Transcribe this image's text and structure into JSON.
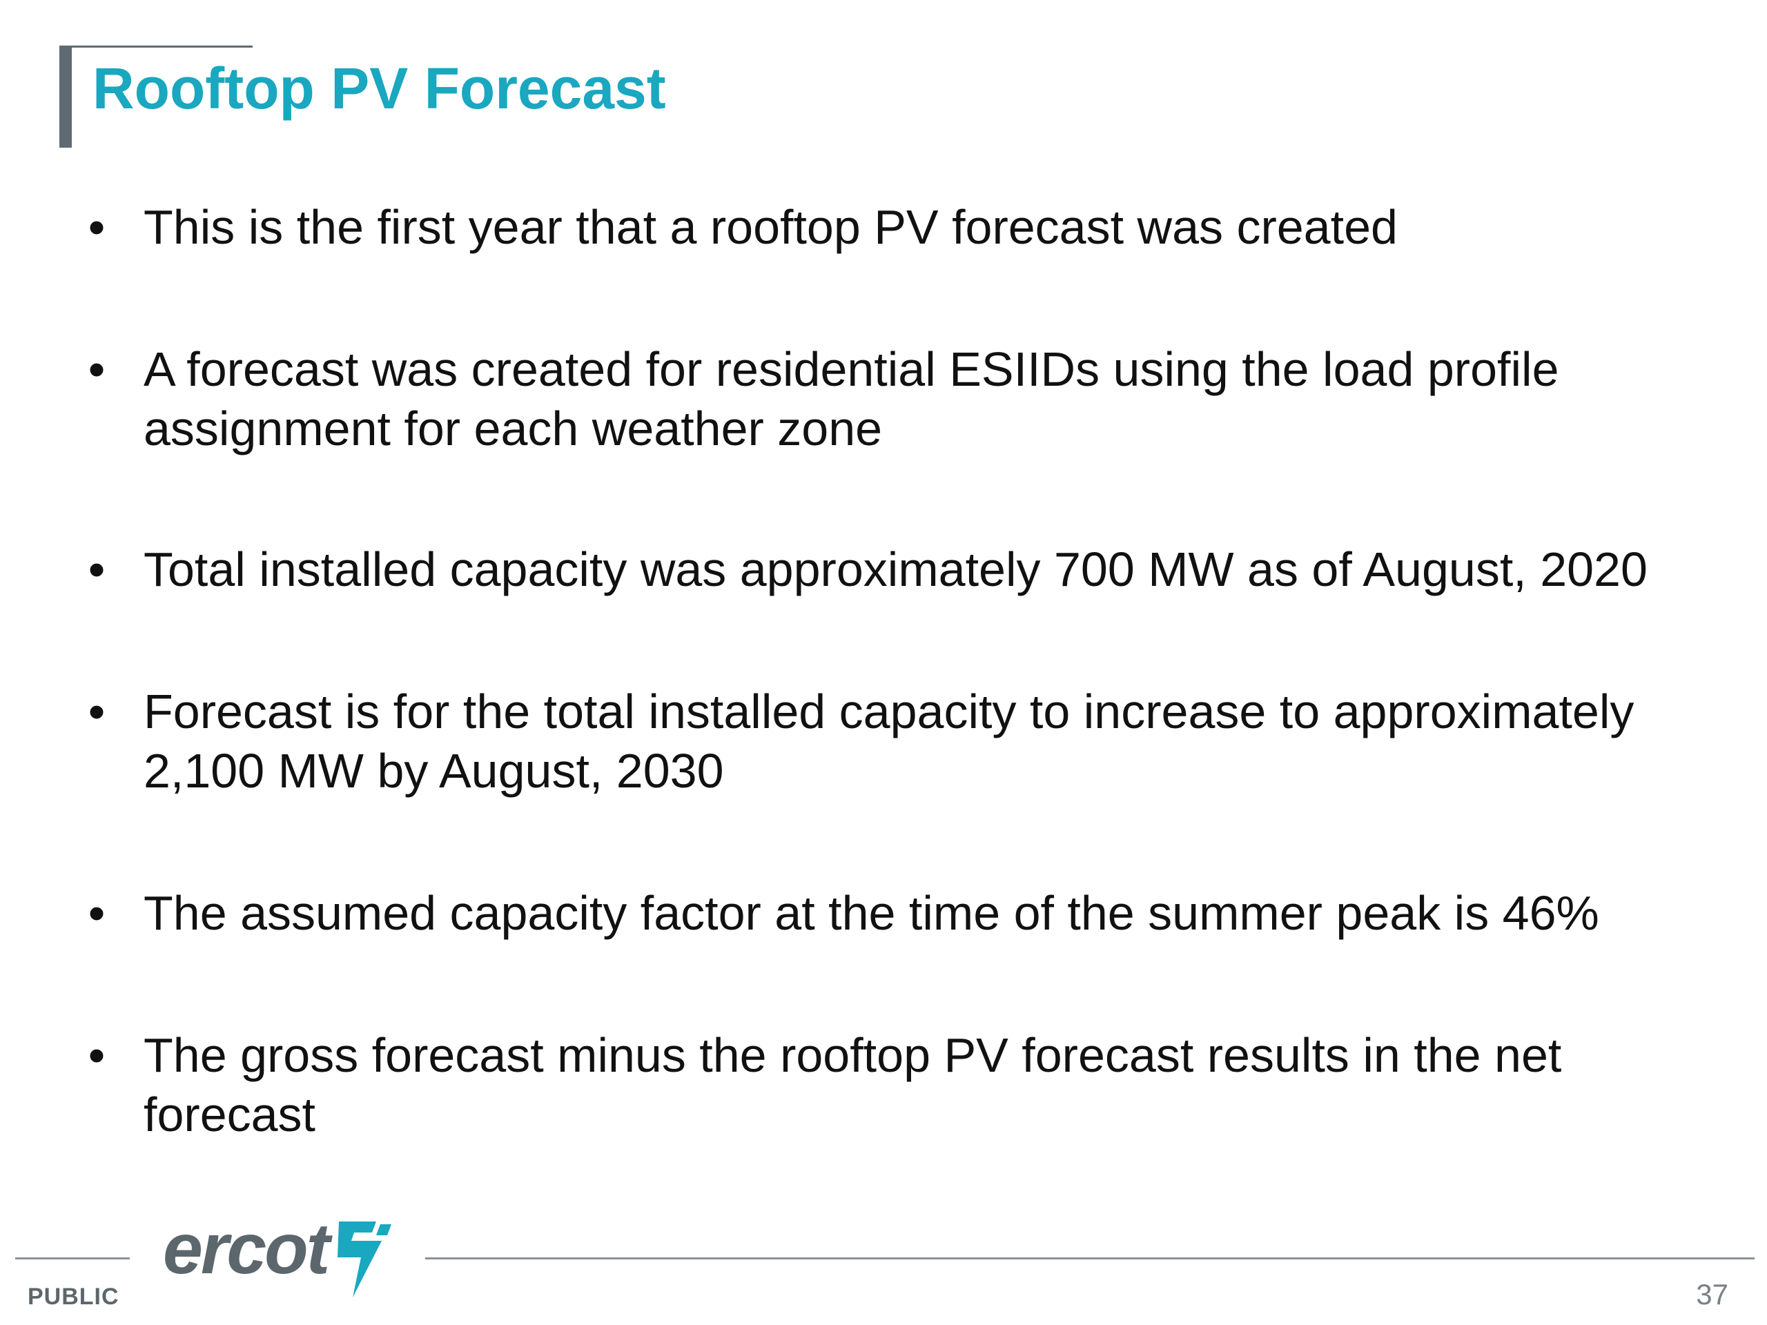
{
  "slide": {
    "title": "Rooftop PV Forecast",
    "bullets": [
      "This is the first year that a rooftop PV forecast was created",
      "A forecast was created for residential ESIIDs using the load profile assignment for each weather zone",
      "Total installed capacity was approximately 700 MW as of August, 2020",
      "Forecast is for the total installed capacity to increase to approximately 2,100 MW by August, 2030",
      "The assumed capacity factor at the time of the summer peak is 46%",
      "The gross forecast minus the rooftop PV forecast results in the net forecast"
    ],
    "bullet_marker": "•"
  },
  "footer": {
    "logo_text": "ercot",
    "classification": "PUBLIC",
    "page_number": "37"
  },
  "colors": {
    "title": "#1aa7c0",
    "accent_bar": "#5f6a72",
    "logo": "#5c666d",
    "logo_mark": "#1aa7c0"
  }
}
